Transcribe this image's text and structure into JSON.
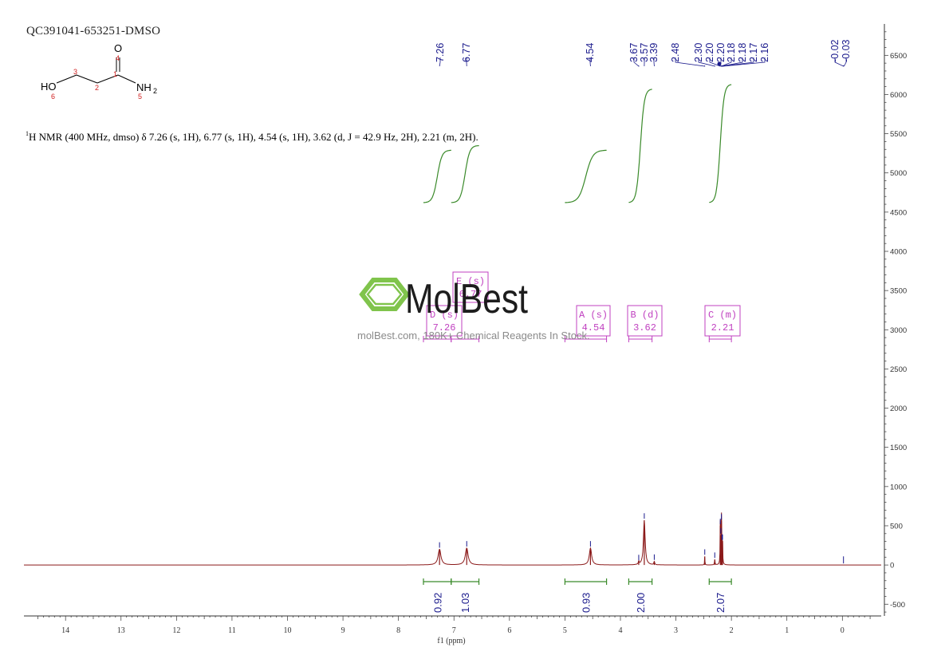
{
  "sample_id": "QC391041-653251-DMSO",
  "structure": {
    "atoms": {
      "O_top": "O",
      "N": "NH",
      "N_sub": "2",
      "HO": "HO"
    },
    "numbers": [
      "1",
      "2",
      "3",
      "4",
      "5",
      "6"
    ]
  },
  "nmr_description": {
    "superscript": "1",
    "text": "H NMR (400 MHz, dmso) δ 7.26 (s, 1H), 6.77 (s, 1H), 4.54 (s, 1H), 3.62 (d, J = 42.9 Hz, 2H), 2.21 (m, 2H)."
  },
  "watermark": {
    "brand": "MolBest",
    "url_text": "molBest.com, 180K+ Chemical Reagents In Stock."
  },
  "colors": {
    "spectrum": "#8b1a1a",
    "peak_labels": "#1a1a8c",
    "integral_curves": "#3a8a2a",
    "multiplet_boxes": "#c040c0",
    "axis": "#333333",
    "watermark_green": "#7ac143"
  },
  "chart_data": {
    "type": "line",
    "xlabel": "f1 (ppm)",
    "x_axis": {
      "min": -0.7,
      "max": 14.75,
      "reversed": true,
      "ticks": [
        14,
        13,
        12,
        11,
        10,
        9,
        8,
        7,
        6,
        5,
        4,
        3,
        2,
        1,
        0
      ]
    },
    "y_axis": {
      "min": -650,
      "max": 6900,
      "position": "right",
      "ticks": [
        -500,
        0,
        500,
        1000,
        1500,
        2000,
        2500,
        3000,
        3500,
        4000,
        4500,
        5000,
        5500,
        6000,
        6500
      ]
    },
    "peaks": [
      {
        "ppm": 7.26,
        "height": 200,
        "width": 0.03
      },
      {
        "ppm": 6.77,
        "height": 215,
        "width": 0.03
      },
      {
        "ppm": 4.54,
        "height": 215,
        "width": 0.025
      },
      {
        "ppm": 3.67,
        "height": 40,
        "width": 0.008
      },
      {
        "ppm": 3.57,
        "height": 570,
        "width": 0.018
      },
      {
        "ppm": 3.39,
        "height": 45,
        "width": 0.008
      },
      {
        "ppm": 2.48,
        "height": 110,
        "width": 0.004
      },
      {
        "ppm": 2.3,
        "height": 70,
        "width": 0.006
      },
      {
        "ppm": 2.2,
        "height": 500,
        "width": 0.004
      },
      {
        "ppm": 2.19,
        "height": 380,
        "width": 0.004
      },
      {
        "ppm": 2.18,
        "height": 560,
        "width": 0.004
      },
      {
        "ppm": 2.17,
        "height": 300,
        "width": 0.004
      },
      {
        "ppm": 2.16,
        "height": 300,
        "width": 0.004
      }
    ],
    "peak_labels": [
      {
        "ppm": 7.26,
        "text": "7.26"
      },
      {
        "ppm": 6.77,
        "text": "6.77"
      },
      {
        "ppm": 4.54,
        "text": "4.54"
      },
      {
        "ppm": 3.67,
        "text": "3.67"
      },
      {
        "ppm": 3.57,
        "text": "3.57"
      },
      {
        "ppm": 3.39,
        "text": "3.39"
      },
      {
        "ppm": 2.48,
        "text": "2.48"
      },
      {
        "ppm": 2.3,
        "text": "2.30"
      },
      {
        "ppm": 2.2,
        "text": "2.20"
      },
      {
        "ppm": 2.2,
        "text": "2.20"
      },
      {
        "ppm": 2.18,
        "text": "2.18"
      },
      {
        "ppm": 2.18,
        "text": "2.18"
      },
      {
        "ppm": 2.17,
        "text": "2.17"
      },
      {
        "ppm": 2.16,
        "text": "2.16"
      },
      {
        "ppm": -0.02,
        "text": "-0.02"
      },
      {
        "ppm": -0.03,
        "text": "-0.03"
      }
    ],
    "integrals": [
      {
        "from": 7.55,
        "to": 7.05,
        "value": "0.92",
        "y_start": 4620,
        "y_end": 5290
      },
      {
        "from": 7.05,
        "to": 6.55,
        "value": "1.03",
        "y_start": 4620,
        "y_end": 5350
      },
      {
        "from": 5.0,
        "to": 4.25,
        "value": "0.93",
        "y_start": 4620,
        "y_end": 5290
      },
      {
        "from": 3.85,
        "to": 3.43,
        "value": "2.00",
        "y_start": 4620,
        "y_end": 6070
      },
      {
        "from": 2.4,
        "to": 2.0,
        "value": "2.07",
        "y_start": 4620,
        "y_end": 6130
      }
    ],
    "multiplets": [
      {
        "letter_line": "A (s)",
        "shift": "4.54",
        "from": 5.0,
        "to": 4.25
      },
      {
        "letter_line": "B (d)",
        "shift": "3.62",
        "from": 3.85,
        "to": 3.43
      },
      {
        "letter_line": "C (m)",
        "shift": "2.21",
        "from": 2.4,
        "to": 2.0
      },
      {
        "letter_line": "D (s)",
        "shift": "7.26",
        "from": 7.55,
        "to": 7.05
      },
      {
        "letter_line": "E (s)",
        "shift": "6.77",
        "from": 7.05,
        "to": 6.55
      }
    ]
  }
}
